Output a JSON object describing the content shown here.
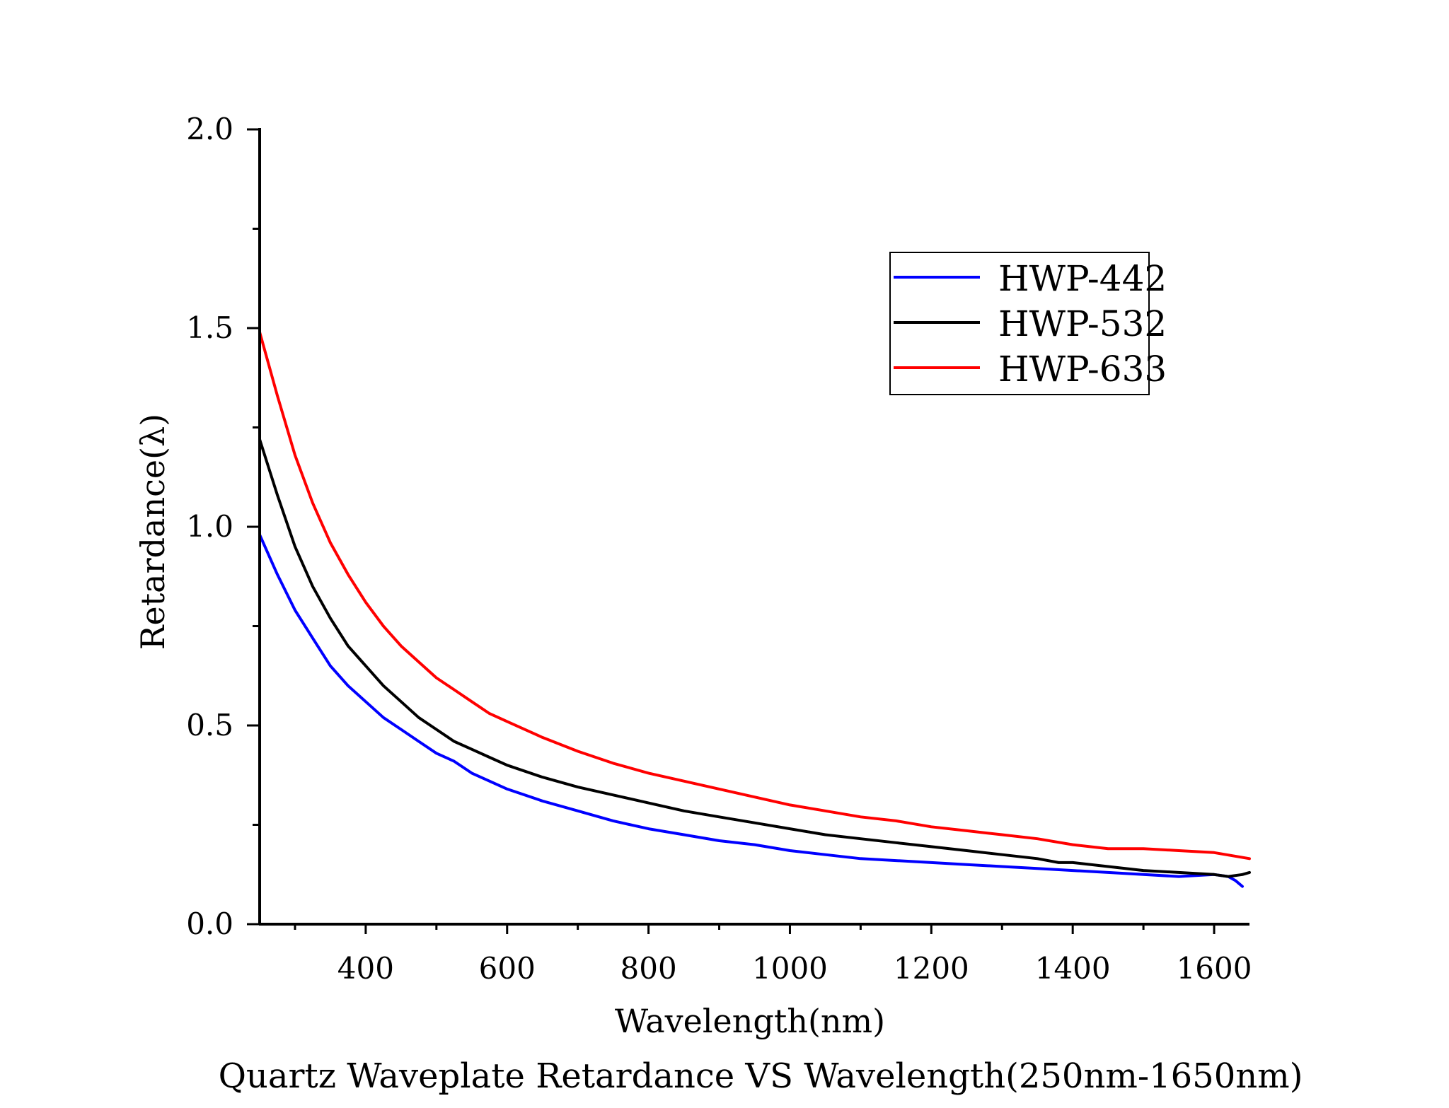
{
  "chart_data": {
    "type": "line",
    "title": "Quartz Waveplate Retardance VS Wavelength(250nm-1650nm)",
    "xlabel": "Wavelength(nm)",
    "ylabel": "Retardance(λ)",
    "xlim": [
      250,
      1650
    ],
    "ylim": [
      0,
      2.0
    ],
    "x_ticks": [
      400,
      600,
      800,
      1000,
      1200,
      1400,
      1600
    ],
    "x_tick_labels": [
      "400",
      "600",
      "800",
      "1000",
      "1200",
      "1400",
      "1600"
    ],
    "y_ticks": [
      0,
      0.5,
      1.0,
      1.5,
      2.0
    ],
    "y_tick_labels": [
      "0.0",
      "0.5",
      "1.0",
      "1.5",
      "2.0"
    ],
    "legend_position": "top-right",
    "series": [
      {
        "name": "HWP-442",
        "color": "#0000ff",
        "x": [
          250,
          275,
          300,
          325,
          350,
          375,
          400,
          425,
          450,
          475,
          500,
          525,
          550,
          575,
          600,
          650,
          700,
          750,
          800,
          850,
          900,
          950,
          1000,
          1050,
          1100,
          1150,
          1200,
          1250,
          1300,
          1350,
          1400,
          1450,
          1500,
          1550,
          1600,
          1620,
          1630,
          1640
        ],
        "y": [
          0.98,
          0.88,
          0.79,
          0.72,
          0.65,
          0.6,
          0.56,
          0.52,
          0.49,
          0.46,
          0.43,
          0.41,
          0.38,
          0.36,
          0.34,
          0.31,
          0.285,
          0.26,
          0.24,
          0.225,
          0.21,
          0.2,
          0.185,
          0.175,
          0.165,
          0.16,
          0.155,
          0.15,
          0.145,
          0.14,
          0.135,
          0.13,
          0.125,
          0.12,
          0.125,
          0.12,
          0.11,
          0.095
        ]
      },
      {
        "name": "HWP-532",
        "color": "#000000",
        "x": [
          250,
          275,
          300,
          325,
          350,
          375,
          400,
          425,
          450,
          475,
          500,
          525,
          550,
          575,
          600,
          650,
          700,
          750,
          800,
          850,
          900,
          950,
          1000,
          1050,
          1100,
          1150,
          1200,
          1250,
          1300,
          1350,
          1380,
          1400,
          1450,
          1500,
          1550,
          1600,
          1620,
          1640,
          1650
        ],
        "y": [
          1.22,
          1.08,
          0.95,
          0.85,
          0.77,
          0.7,
          0.65,
          0.6,
          0.56,
          0.52,
          0.49,
          0.46,
          0.44,
          0.42,
          0.4,
          0.37,
          0.345,
          0.325,
          0.305,
          0.285,
          0.27,
          0.255,
          0.24,
          0.225,
          0.215,
          0.205,
          0.195,
          0.185,
          0.175,
          0.165,
          0.155,
          0.155,
          0.145,
          0.135,
          0.13,
          0.125,
          0.12,
          0.125,
          0.13
        ]
      },
      {
        "name": "HWP-633",
        "color": "#ff0000",
        "x": [
          250,
          275,
          300,
          325,
          350,
          375,
          400,
          425,
          450,
          475,
          500,
          525,
          550,
          575,
          600,
          650,
          700,
          750,
          800,
          850,
          900,
          950,
          1000,
          1050,
          1100,
          1150,
          1200,
          1250,
          1300,
          1350,
          1400,
          1450,
          1500,
          1550,
          1600,
          1650
        ],
        "y": [
          1.49,
          1.33,
          1.18,
          1.06,
          0.96,
          0.88,
          0.81,
          0.75,
          0.7,
          0.66,
          0.62,
          0.59,
          0.56,
          0.53,
          0.51,
          0.47,
          0.435,
          0.405,
          0.38,
          0.36,
          0.34,
          0.32,
          0.3,
          0.285,
          0.27,
          0.26,
          0.245,
          0.235,
          0.225,
          0.215,
          0.2,
          0.19,
          0.19,
          0.185,
          0.18,
          0.165
        ]
      }
    ]
  }
}
